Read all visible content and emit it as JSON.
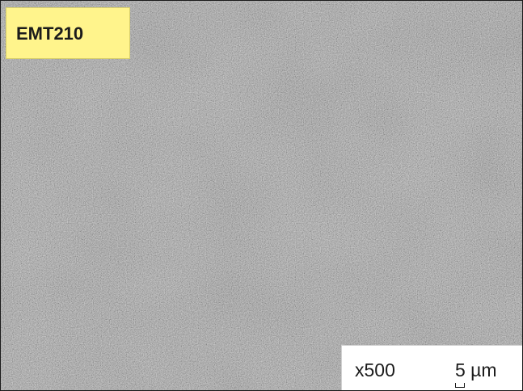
{
  "image": {
    "label": "EMT210",
    "magnification": "x500",
    "scale_value": "5",
    "scale_unit": "µm",
    "scale_display": "5 µm",
    "colors": {
      "label_background": "#fff48c",
      "micrograph_base": "#8e8e8e",
      "info_background": "#ffffff"
    }
  }
}
